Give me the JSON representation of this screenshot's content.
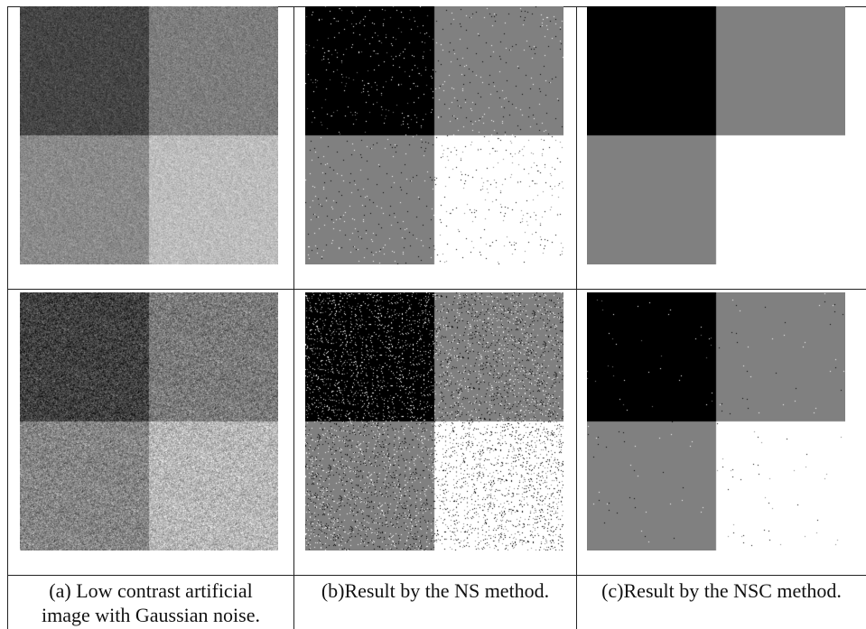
{
  "figure": {
    "captions": [
      {
        "line1": "(a) Low contrast artificial",
        "line2": "image with Gaussian noise."
      },
      {
        "line1": "(b)Result by the NS method.",
        "line2": ""
      },
      {
        "line1": "(c)Result by the NSC method.",
        "line2": ""
      }
    ],
    "panels": [
      {
        "row": 1,
        "column": "a",
        "content": "noisy-low-contrast-quadrants",
        "quadrant_gray": [
          "#454545",
          "#7d7d7d",
          "#8a8a8a",
          "#bdbdbd"
        ],
        "noise": "moderate"
      },
      {
        "row": 1,
        "column": "b",
        "content": "ns-segmentation",
        "quadrant_gray": [
          "#000000",
          "#808080",
          "#808080",
          "#ffffff"
        ],
        "noise": "sparse-speckle"
      },
      {
        "row": 1,
        "column": "c",
        "content": "nsc-segmentation",
        "quadrant_gray": [
          "#000000",
          "#808080",
          "#808080",
          "#ffffff"
        ],
        "noise": "clean"
      },
      {
        "row": 2,
        "column": "a",
        "content": "noisy-low-contrast-quadrants",
        "quadrant_gray": [
          "#404040",
          "#7a7a7a",
          "#858585",
          "#b8b8b8"
        ],
        "noise": "heavy"
      },
      {
        "row": 2,
        "column": "b",
        "content": "ns-segmentation",
        "quadrant_gray": [
          "#000000",
          "#808080",
          "#808080",
          "#ffffff"
        ],
        "noise": "dense-speckle"
      },
      {
        "row": 2,
        "column": "c",
        "content": "nsc-segmentation",
        "quadrant_gray": [
          "#000000",
          "#808080",
          "#808080",
          "#ffffff"
        ],
        "noise": "few-specks"
      }
    ]
  }
}
